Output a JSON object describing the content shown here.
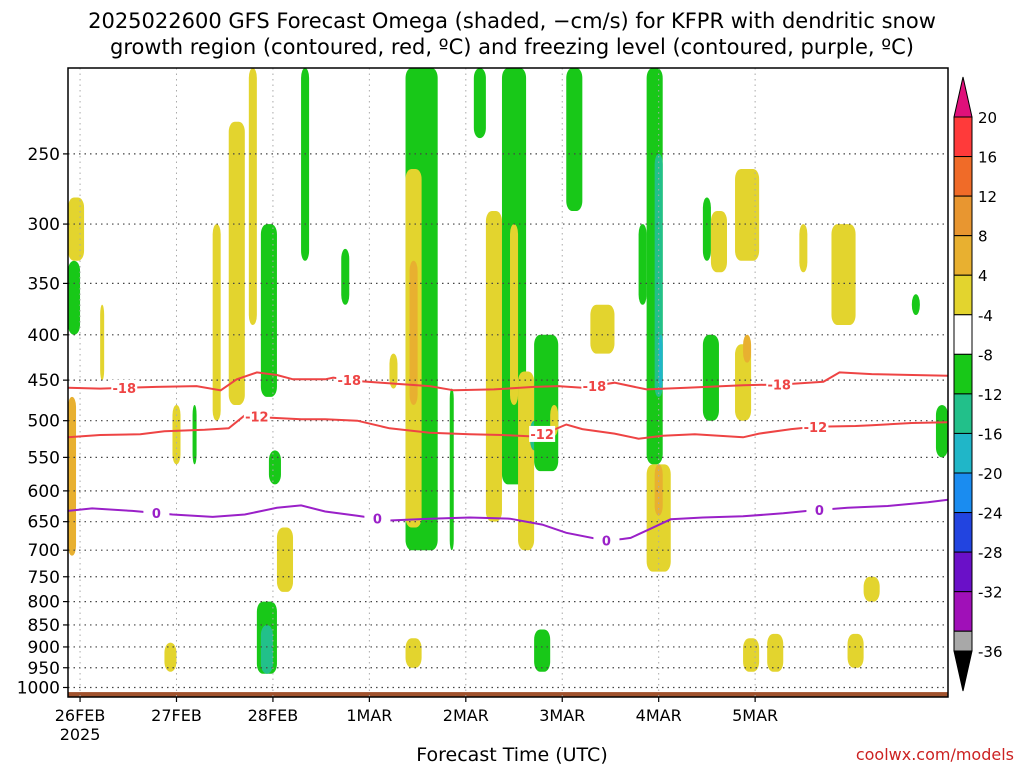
{
  "title": {
    "line1": "2025022600 GFS Forecast Omega (shaded, −cm/s) for KFPR with dendritic snow",
    "line2": "growth region (contoured, red, ºC) and freezing level (contoured, purple, ºC)"
  },
  "credit": "coolwx.com/models",
  "chart_data": {
    "type": "heatmap",
    "title": "2025022600 GFS Forecast Omega (shaded, −cm/s) for KFPR with dendritic snow growth region (contoured, red, ºC) and freezing level (contoured, purple, ºC)",
    "xlabel": "Forecast Time (UTC)",
    "ylabel": "",
    "x_ticks": [
      "26FEB",
      "27FEB",
      "28FEB",
      "1MAR",
      "2MAR",
      "3MAR",
      "4MAR",
      "5MAR"
    ],
    "x_year_label": "2025",
    "x_range_hours": [
      0,
      219
    ],
    "y_ticks": [
      250,
      300,
      350,
      400,
      450,
      500,
      550,
      600,
      650,
      700,
      750,
      800,
      850,
      900,
      950,
      1000
    ],
    "y_range_hpa": [
      200,
      1025
    ],
    "y_scale": "log-pressure",
    "grid": true,
    "colorbar": {
      "labels": [
        "20",
        "16",
        "12",
        "8",
        "4",
        "-4",
        "-8",
        "-12",
        "-16",
        "-20",
        "-24",
        "-28",
        "-32",
        "-36"
      ],
      "colors": [
        "#ff3a3a",
        "#f06b28",
        "#e89630",
        "#e8b030",
        "#e3d42e",
        "#ffffff",
        "#18c818",
        "#22c08a",
        "#20b6c8",
        "#1a8cf0",
        "#2244e0",
        "#6a10c8",
        "#a010b8",
        "#a8a8a8"
      ],
      "top_arrow_color": "#e0107a",
      "bottom_arrow_color": "#000000"
    },
    "contours": [
      {
        "name": "-18",
        "color": "#ee4444",
        "label_hours": [
          14,
          70,
          131,
          177
        ],
        "points": [
          [
            0,
            459
          ],
          [
            8,
            460
          ],
          [
            22,
            458
          ],
          [
            32,
            457
          ],
          [
            38,
            462
          ],
          [
            42,
            449
          ],
          [
            47,
            441
          ],
          [
            52,
            444
          ],
          [
            56,
            449
          ],
          [
            64,
            449
          ],
          [
            66,
            447
          ],
          [
            72,
            451
          ],
          [
            78,
            453
          ],
          [
            90,
            457
          ],
          [
            96,
            462
          ],
          [
            106,
            461
          ],
          [
            116,
            458
          ],
          [
            122,
            457
          ],
          [
            128,
            459
          ],
          [
            136,
            453
          ],
          [
            144,
            461
          ],
          [
            154,
            459
          ],
          [
            168,
            456
          ],
          [
            178,
            455
          ],
          [
            188,
            452
          ],
          [
            192,
            441
          ],
          [
            200,
            443
          ],
          [
            219,
            445
          ]
        ]
      },
      {
        "name": "-12",
        "color": "#ee4444",
        "label_hours": [
          47,
          118,
          186
        ],
        "points": [
          [
            0,
            522
          ],
          [
            8,
            519
          ],
          [
            18,
            518
          ],
          [
            24,
            514
          ],
          [
            34,
            512
          ],
          [
            40,
            510
          ],
          [
            44,
            493
          ],
          [
            50,
            496
          ],
          [
            58,
            498
          ],
          [
            64,
            498
          ],
          [
            72,
            500
          ],
          [
            80,
            510
          ],
          [
            90,
            516
          ],
          [
            100,
            518
          ],
          [
            108,
            519
          ],
          [
            116,
            521
          ],
          [
            120,
            514
          ],
          [
            124,
            505
          ],
          [
            128,
            511
          ],
          [
            136,
            517
          ],
          [
            142,
            524
          ],
          [
            148,
            520
          ],
          [
            156,
            518
          ],
          [
            168,
            522
          ],
          [
            172,
            517
          ],
          [
            180,
            511
          ],
          [
            186,
            508
          ],
          [
            196,
            507
          ],
          [
            200,
            506
          ],
          [
            210,
            503
          ],
          [
            219,
            502
          ]
        ]
      },
      {
        "name": "0",
        "color": "#9a20c8",
        "label_hours": [
          22,
          77,
          134,
          187
        ],
        "points": [
          [
            0,
            632
          ],
          [
            6,
            628
          ],
          [
            16,
            632
          ],
          [
            26,
            638
          ],
          [
            36,
            642
          ],
          [
            44,
            638
          ],
          [
            52,
            627
          ],
          [
            58,
            623
          ],
          [
            64,
            633
          ],
          [
            72,
            640
          ],
          [
            80,
            648
          ],
          [
            90,
            645
          ],
          [
            100,
            643
          ],
          [
            110,
            645
          ],
          [
            118,
            655
          ],
          [
            124,
            669
          ],
          [
            134,
            683
          ],
          [
            138,
            680
          ],
          [
            140,
            678
          ],
          [
            145,
            662
          ],
          [
            150,
            646
          ],
          [
            158,
            643
          ],
          [
            168,
            641
          ],
          [
            178,
            636
          ],
          [
            184,
            632
          ],
          [
            194,
            627
          ],
          [
            204,
            624
          ],
          [
            214,
            618
          ],
          [
            219,
            614
          ]
        ]
      }
    ],
    "shaded_regions": [
      {
        "x": [
          0,
          4
        ],
        "y": [
          280,
          330
        ],
        "value": 4
      },
      {
        "x": [
          0,
          2
        ],
        "y": [
          470,
          710
        ],
        "value": 8
      },
      {
        "x": [
          8,
          9
        ],
        "y": [
          370,
          450
        ],
        "value": 4
      },
      {
        "x": [
          0,
          3
        ],
        "y": [
          330,
          400
        ],
        "value": -8
      },
      {
        "x": [
          24,
          27
        ],
        "y": [
          890,
          960
        ],
        "value": 4
      },
      {
        "x": [
          26,
          28
        ],
        "y": [
          480,
          560
        ],
        "value": 4
      },
      {
        "x": [
          31,
          32
        ],
        "y": [
          480,
          560
        ],
        "value": -8
      },
      {
        "x": [
          36,
          38
        ],
        "y": [
          300,
          500
        ],
        "value": 4
      },
      {
        "x": [
          40,
          44
        ],
        "y": [
          230,
          480
        ],
        "value": 4
      },
      {
        "x": [
          45,
          47
        ],
        "y": [
          200,
          390
        ],
        "value": 4
      },
      {
        "x": [
          47,
          52
        ],
        "y": [
          800,
          965
        ],
        "value": -8
      },
      {
        "x": [
          48,
          51
        ],
        "y": [
          850,
          965
        ],
        "value": -12
      },
      {
        "x": [
          50,
          53
        ],
        "y": [
          540,
          590
        ],
        "value": -8
      },
      {
        "x": [
          48,
          52
        ],
        "y": [
          300,
          470
        ],
        "value": -8
      },
      {
        "x": [
          52,
          56
        ],
        "y": [
          660,
          780
        ],
        "value": 4
      },
      {
        "x": [
          58,
          60
        ],
        "y": [
          200,
          330
        ],
        "value": -8
      },
      {
        "x": [
          68,
          70
        ],
        "y": [
          320,
          370
        ],
        "value": -8
      },
      {
        "x": [
          80,
          82
        ],
        "y": [
          420,
          460
        ],
        "value": 4
      },
      {
        "x": [
          84,
          92
        ],
        "y": [
          200,
          700
        ],
        "value": -8
      },
      {
        "x": [
          84,
          88
        ],
        "y": [
          260,
          660
        ],
        "value": 4
      },
      {
        "x": [
          85,
          87
        ],
        "y": [
          330,
          480
        ],
        "value": 8
      },
      {
        "x": [
          84,
          88
        ],
        "y": [
          880,
          950
        ],
        "value": 4
      },
      {
        "x": [
          95,
          96
        ],
        "y": [
          460,
          700
        ],
        "value": -8
      },
      {
        "x": [
          101,
          104
        ],
        "y": [
          200,
          240
        ],
        "value": -8
      },
      {
        "x": [
          104,
          108
        ],
        "y": [
          290,
          650
        ],
        "value": 4
      },
      {
        "x": [
          108,
          114
        ],
        "y": [
          200,
          590
        ],
        "value": -8
      },
      {
        "x": [
          110,
          112
        ],
        "y": [
          300,
          480
        ],
        "value": 4
      },
      {
        "x": [
          112,
          116
        ],
        "y": [
          440,
          700
        ],
        "value": 4
      },
      {
        "x": [
          115,
          117
        ],
        "y": [
          500,
          540
        ],
        "value": -12
      },
      {
        "x": [
          116,
          122
        ],
        "y": [
          400,
          570
        ],
        "value": -8
      },
      {
        "x": [
          120,
          122
        ],
        "y": [
          480,
          520
        ],
        "value": 4
      },
      {
        "x": [
          116,
          120
        ],
        "y": [
          860,
          960
        ],
        "value": -8
      },
      {
        "x": [
          124,
          128
        ],
        "y": [
          200,
          290
        ],
        "value": -8
      },
      {
        "x": [
          130,
          136
        ],
        "y": [
          370,
          420
        ],
        "value": 4
      },
      {
        "x": [
          142,
          144
        ],
        "y": [
          300,
          370
        ],
        "value": -8
      },
      {
        "x": [
          144,
          148
        ],
        "y": [
          200,
          560
        ],
        "value": -8
      },
      {
        "x": [
          146,
          148
        ],
        "y": [
          250,
          470
        ],
        "value": -12
      },
      {
        "x": [
          147,
          148
        ],
        "y": [
          400,
          460
        ],
        "value": -16
      },
      {
        "x": [
          144,
          150
        ],
        "y": [
          560,
          740
        ],
        "value": 4
      },
      {
        "x": [
          146,
          148
        ],
        "y": [
          560,
          640
        ],
        "value": 8
      },
      {
        "x": [
          158,
          160
        ],
        "y": [
          280,
          330
        ],
        "value": -8
      },
      {
        "x": [
          158,
          162
        ],
        "y": [
          400,
          500
        ],
        "value": -8
      },
      {
        "x": [
          160,
          164
        ],
        "y": [
          290,
          340
        ],
        "value": 4
      },
      {
        "x": [
          166,
          170
        ],
        "y": [
          410,
          500
        ],
        "value": 4
      },
      {
        "x": [
          166,
          172
        ],
        "y": [
          260,
          330
        ],
        "value": 4
      },
      {
        "x": [
          168,
          170
        ],
        "y": [
          400,
          430
        ],
        "value": 8
      },
      {
        "x": [
          168,
          172
        ],
        "y": [
          880,
          960
        ],
        "value": 4
      },
      {
        "x": [
          174,
          178
        ],
        "y": [
          870,
          960
        ],
        "value": 4
      },
      {
        "x": [
          182,
          184
        ],
        "y": [
          300,
          340
        ],
        "value": 4
      },
      {
        "x": [
          190,
          196
        ],
        "y": [
          300,
          390
        ],
        "value": 4
      },
      {
        "x": [
          194,
          198
        ],
        "y": [
          870,
          950
        ],
        "value": 4
      },
      {
        "x": [
          198,
          202
        ],
        "y": [
          750,
          800
        ],
        "value": 4
      },
      {
        "x": [
          210,
          212
        ],
        "y": [
          360,
          380
        ],
        "value": -8
      },
      {
        "x": [
          216,
          219
        ],
        "y": [
          480,
          550
        ],
        "value": -8
      }
    ]
  }
}
